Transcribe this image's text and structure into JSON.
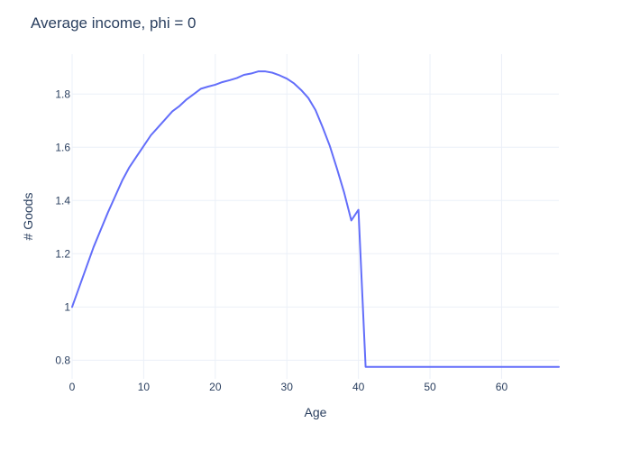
{
  "chart_data": {
    "type": "line",
    "title": "Average income, phi = 0",
    "xlabel": "Age",
    "ylabel": "# Goods",
    "xlim": [
      0,
      68
    ],
    "ylim": [
      0.73,
      1.95
    ],
    "xticks": [
      0,
      10,
      20,
      30,
      40,
      50,
      60
    ],
    "yticks": [
      0.8,
      1,
      1.2,
      1.4,
      1.6,
      1.8
    ],
    "grid": true,
    "legend": "none",
    "series_color": "#636efa",
    "series": [
      {
        "x": [
          0,
          1,
          2,
          3,
          4,
          5,
          6,
          7,
          8,
          9,
          10,
          11,
          12,
          13,
          14,
          15,
          16,
          17,
          18,
          19,
          20,
          21,
          22,
          23,
          24,
          25,
          26,
          27,
          28,
          29,
          30,
          31,
          32,
          33,
          34,
          35,
          36,
          37,
          38,
          39,
          40,
          41,
          42,
          50,
          60,
          68
        ],
        "y": [
          1.0,
          1.075,
          1.15,
          1.225,
          1.29,
          1.355,
          1.415,
          1.475,
          1.525,
          1.565,
          1.605,
          1.645,
          1.675,
          1.705,
          1.735,
          1.755,
          1.78,
          1.8,
          1.82,
          1.828,
          1.835,
          1.845,
          1.852,
          1.86,
          1.872,
          1.877,
          1.885,
          1.885,
          1.88,
          1.87,
          1.858,
          1.84,
          1.815,
          1.785,
          1.74,
          1.675,
          1.605,
          1.52,
          1.43,
          1.325,
          1.365,
          0.775,
          0.775,
          0.775,
          0.775,
          0.775
        ]
      }
    ]
  }
}
